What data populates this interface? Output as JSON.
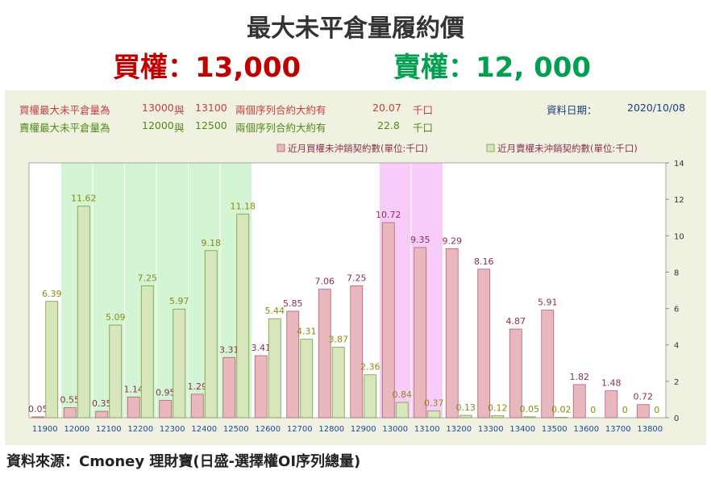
{
  "header": {
    "title": "最大未平倉量履約價",
    "call_text": "買權：13,000",
    "put_text": "賣權：12, 000"
  },
  "info": {
    "call_label": "買權最大未平倉量為",
    "call_strike1": "13000",
    "and1": "與",
    "call_strike2": "13100",
    "call_desc": "兩個序列合約大約有",
    "call_value": "20.07",
    "call_unit": "千口",
    "put_label": "賣權最大未平倉量為",
    "put_strike1": "12000",
    "and2": "與",
    "put_strike2": "12500",
    "put_desc": "兩個序列合約大約有",
    "put_value": "22.8",
    "put_unit": "千口",
    "date_label": "資料日期：",
    "date_value": "2020/10/08"
  },
  "source": "資料來源：Cmoney 理財寶(日盛-選擇權OI序列總量)",
  "colors": {
    "call_bar": "#e8b8be",
    "call_bar_border": "#b06070",
    "put_bar": "#d8e6bc",
    "put_bar_border": "#7a9a40",
    "call_label": "#8a3050",
    "put_label": "#8a8a10",
    "put_highlight": "#d4f5d4",
    "call_highlight": "#f8ccf8",
    "tick_label": "#1a4a9a"
  },
  "chart_data": {
    "type": "bar",
    "categories": [
      "11900",
      "12000",
      "12100",
      "12200",
      "12300",
      "12400",
      "12500",
      "12600",
      "12700",
      "12800",
      "12900",
      "13000",
      "13100",
      "13200",
      "13300",
      "13400",
      "13500",
      "13600",
      "13700",
      "13800"
    ],
    "series": [
      {
        "name": "近月買權未沖銷契約數(單位:千口)",
        "values": [
          0.05,
          0.55,
          0.35,
          1.14,
          0.95,
          1.29,
          3.31,
          3.41,
          5.85,
          7.06,
          7.25,
          10.72,
          9.35,
          9.29,
          8.16,
          4.87,
          5.91,
          1.82,
          1.48,
          0.72
        ]
      },
      {
        "name": "近月賣權未沖銷契約數(單位:千口)",
        "values": [
          6.39,
          11.62,
          5.09,
          7.25,
          5.97,
          9.18,
          11.18,
          5.44,
          4.31,
          3.87,
          2.36,
          0.84,
          0.37,
          0.13,
          0.12,
          0.05,
          0.02,
          0,
          0,
          0
        ]
      }
    ],
    "ylim": [
      0,
      14
    ],
    "yticks": [
      0,
      2,
      4,
      6,
      8,
      10,
      12,
      14
    ],
    "grid": false,
    "legend_position": "top-right",
    "highlight_ranges": [
      {
        "from": "12000",
        "to": "12500",
        "series": "put"
      },
      {
        "from": "13000",
        "to": "13100",
        "series": "call"
      }
    ]
  }
}
